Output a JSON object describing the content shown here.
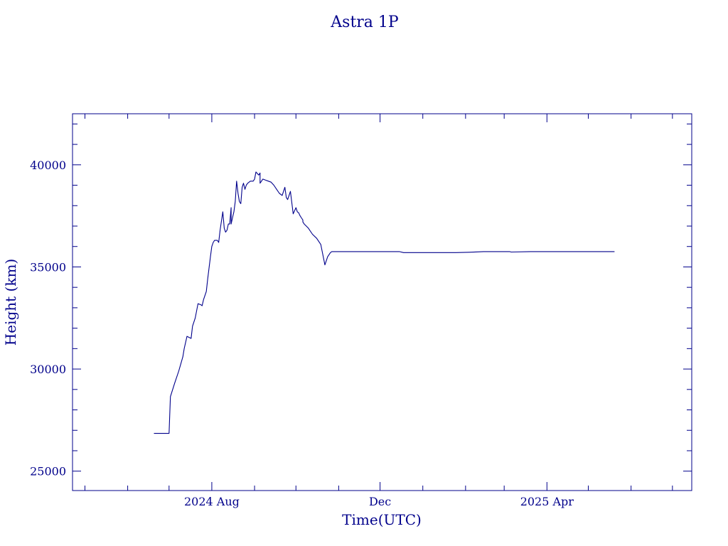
{
  "chart_data": {
    "type": "line",
    "title": "Astra 1P",
    "xlabel": "Time(UTC)",
    "ylabel": "Height (km)",
    "color": "#00008b",
    "x_tick_labels": [
      {
        "date": "2024-08-01",
        "label": "2024 Aug"
      },
      {
        "date": "2024-12-01",
        "label": "Dec"
      },
      {
        "date": "2025-04-01",
        "label": "2025 Apr"
      }
    ],
    "xlim": [
      "2024-04-22",
      "2025-07-15"
    ],
    "y_ticks": [
      25000,
      30000,
      35000,
      40000
    ],
    "y_tick_labels": [
      "25000",
      "30000",
      "35000",
      "40000"
    ],
    "ylim": [
      24050,
      42500
    ],
    "grid": false,
    "series": [
      {
        "x": [
          "2024-06-20",
          "2024-07-01",
          "2024-07-01",
          "2024-07-02",
          "2024-07-05",
          "2024-07-08",
          "2024-07-11",
          "2024-07-12",
          "2024-07-14",
          "2024-07-17",
          "2024-07-18",
          "2024-07-20",
          "2024-07-22",
          "2024-07-24",
          "2024-07-25",
          "2024-07-26",
          "2024-07-28",
          "2024-07-29",
          "2024-07-31",
          "2024-08-01",
          "2024-08-02",
          "2024-08-03",
          "2024-08-05",
          "2024-08-06",
          "2024-08-07",
          "2024-08-09",
          "2024-08-10",
          "2024-08-11",
          "2024-08-12",
          "2024-08-13",
          "2024-08-14",
          "2024-08-15",
          "2024-08-15",
          "2024-08-16",
          "2024-08-17",
          "2024-08-18",
          "2024-08-19",
          "2024-08-20",
          "2024-08-21",
          "2024-08-22",
          "2024-08-23",
          "2024-08-24",
          "2024-08-25",
          "2024-08-26",
          "2024-08-27",
          "2024-08-29",
          "2024-08-31",
          "2024-09-01",
          "2024-09-02",
          "2024-09-04",
          "2024-09-05",
          "2024-09-05",
          "2024-09-06",
          "2024-09-07",
          "2024-09-09",
          "2024-09-11",
          "2024-09-13",
          "2024-09-15",
          "2024-09-17",
          "2024-09-19",
          "2024-09-21",
          "2024-09-23",
          "2024-09-24",
          "2024-09-25",
          "2024-09-27",
          "2024-09-29",
          "2024-10-01",
          "2024-10-02",
          "2024-10-03",
          "2024-10-04",
          "2024-10-05",
          "2024-10-06",
          "2024-10-06",
          "2024-10-07",
          "2024-10-10",
          "2024-10-13",
          "2024-10-16",
          "2024-10-19",
          "2024-10-22",
          "2024-10-24",
          "2024-10-26",
          "2024-10-27",
          "2024-10-28",
          "2024-10-29",
          "2024-10-30",
          "2024-10-31",
          "2024-11-01",
          "2024-11-07",
          "2024-11-13",
          "2024-11-19",
          "2024-11-25",
          "2024-12-01",
          "2024-12-08",
          "2024-12-15",
          "2024-12-18",
          "2024-12-20",
          "2024-12-22",
          "2024-12-23",
          "2024-12-25",
          "2025-01-05",
          "2025-01-15",
          "2025-01-25",
          "2025-02-04",
          "2025-02-14",
          "2025-02-24",
          "2025-03-04",
          "2025-03-05",
          "2025-03-06",
          "2025-03-20",
          "2025-04-01",
          "2025-04-15",
          "2025-04-30",
          "2025-05-11",
          "2025-05-20"
        ],
        "y": [
          26850,
          26850,
          26850,
          28650,
          29300,
          29900,
          30600,
          31000,
          31600,
          31500,
          32100,
          32500,
          33200,
          33150,
          33100,
          33400,
          33800,
          34400,
          35500,
          36000,
          36200,
          36300,
          36300,
          36200,
          36800,
          37700,
          36900,
          36700,
          36800,
          37100,
          37100,
          37900,
          37100,
          37400,
          37700,
          38200,
          39200,
          38600,
          38200,
          38100,
          38900,
          39100,
          38800,
          39000,
          39100,
          39200,
          39200,
          39300,
          39650,
          39500,
          39600,
          39100,
          39200,
          39300,
          39250,
          39200,
          39150,
          39000,
          38800,
          38600,
          38500,
          38900,
          38400,
          38300,
          38700,
          37600,
          37900,
          37700,
          37650,
          37500,
          37400,
          37300,
          37200,
          37100,
          36900,
          36600,
          36400,
          36100,
          35100,
          35500,
          35700,
          35750,
          35750,
          35750,
          35750,
          35750,
          35750,
          35750,
          35750,
          35750,
          35750,
          35750,
          35750,
          35750,
          35700,
          35700,
          35700,
          35700,
          35700,
          35700,
          35700,
          35700,
          35720,
          35750,
          35750,
          35750,
          35750,
          35730,
          35750,
          35750,
          35750,
          35750,
          35750,
          35750
        ]
      }
    ]
  }
}
